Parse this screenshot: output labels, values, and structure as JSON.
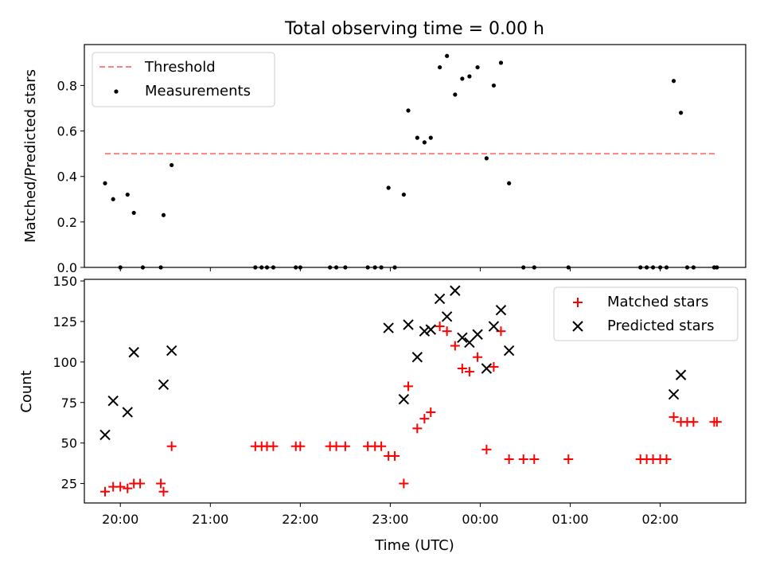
{
  "chart_data": [
    {
      "type": "scatter",
      "title": "Total observing time = 0.00 h",
      "xlabel": "",
      "ylabel": "Matched/Predicted stars",
      "ylim": [
        0,
        0.98
      ],
      "yticks": [
        "0.0",
        "0.2",
        "0.4",
        "0.6",
        "0.8"
      ],
      "ytick_values": [
        0,
        0.2,
        0.4,
        0.6,
        0.8
      ],
      "xlim": [
        19.6,
        26.95
      ],
      "legend_position": "top-left",
      "threshold": {
        "name": "Threshold",
        "value": 0.5,
        "x_start": 19.83,
        "x_end": 26.63,
        "color": "#ff8080"
      },
      "series": [
        {
          "name": "Measurements",
          "color": "#000000",
          "marker": "dot",
          "x": [
            19.83,
            19.92,
            20.0,
            20.08,
            20.15,
            20.25,
            20.45,
            20.48,
            20.57,
            21.5,
            21.57,
            21.63,
            21.7,
            21.95,
            22.0,
            22.33,
            22.4,
            22.5,
            22.75,
            22.83,
            22.9,
            22.98,
            23.05,
            23.15,
            23.2,
            23.3,
            23.38,
            23.45,
            23.55,
            23.63,
            23.72,
            23.8,
            23.88,
            23.97,
            24.07,
            24.15,
            24.23,
            24.32,
            24.48,
            24.6,
            24.98,
            25.78,
            25.85,
            25.92,
            26.0,
            26.07,
            26.15,
            26.23,
            26.3,
            26.37,
            26.6,
            26.63
          ],
          "y": [
            0.37,
            0.3,
            0.0,
            0.32,
            0.24,
            0.0,
            0.0,
            0.23,
            0.45,
            0.0,
            0.0,
            0.0,
            0.0,
            0.0,
            0.0,
            0.0,
            0.0,
            0.0,
            0.0,
            0.0,
            0.0,
            0.35,
            0.0,
            0.32,
            0.69,
            0.57,
            0.55,
            0.57,
            0.88,
            0.93,
            0.76,
            0.83,
            0.84,
            0.88,
            0.48,
            0.8,
            0.9,
            0.37,
            0.0,
            0.0,
            0.0,
            0.0,
            0.0,
            0.0,
            0.0,
            0.0,
            0.82,
            0.68,
            0.0,
            0.0,
            0.0,
            0.0
          ]
        }
      ]
    },
    {
      "type": "scatter",
      "title": "",
      "xlabel": "Time (UTC)",
      "ylabel": "Count",
      "ylim": [
        13,
        151
      ],
      "yticks": [
        "25",
        "50",
        "75",
        "100",
        "125",
        "150"
      ],
      "ytick_values": [
        25,
        50,
        75,
        100,
        125,
        150
      ],
      "xlim": [
        19.6,
        26.95
      ],
      "xticks": [
        "20:00",
        "21:00",
        "22:00",
        "23:00",
        "00:00",
        "01:00",
        "02:00"
      ],
      "xtick_values": [
        20,
        21,
        22,
        23,
        24,
        25,
        26
      ],
      "legend_position": "top-right",
      "series": [
        {
          "name": "Matched stars",
          "color": "#ff0000",
          "marker": "plus",
          "x": [
            19.83,
            19.92,
            20.0,
            20.08,
            20.15,
            20.22,
            20.45,
            20.48,
            20.57,
            21.5,
            21.57,
            21.63,
            21.7,
            21.95,
            22.0,
            22.33,
            22.4,
            22.5,
            22.75,
            22.83,
            22.9,
            22.98,
            23.05,
            23.15,
            23.2,
            23.3,
            23.38,
            23.45,
            23.55,
            23.63,
            23.72,
            23.8,
            23.88,
            23.97,
            24.07,
            24.15,
            24.23,
            24.32,
            24.48,
            24.6,
            24.98,
            25.78,
            25.85,
            25.92,
            26.0,
            26.07,
            26.15,
            26.23,
            26.3,
            26.37,
            26.6,
            26.63
          ],
          "y": [
            20,
            23,
            23,
            22,
            25,
            25,
            25,
            20,
            48,
            48,
            48,
            48,
            48,
            48,
            48,
            48,
            48,
            48,
            48,
            48,
            48,
            42,
            42,
            25,
            85,
            59,
            65,
            69,
            122,
            119,
            110,
            96,
            94,
            103,
            46,
            97,
            119,
            40,
            40,
            40,
            40,
            40,
            40,
            40,
            40,
            40,
            66,
            63,
            63,
            63,
            63,
            63
          ]
        },
        {
          "name": "Predicted stars",
          "color": "#000000",
          "marker": "x",
          "x": [
            19.83,
            19.92,
            20.08,
            20.15,
            20.48,
            20.57,
            22.98,
            23.15,
            23.2,
            23.3,
            23.38,
            23.45,
            23.55,
            23.63,
            23.72,
            23.8,
            23.88,
            23.97,
            24.07,
            24.15,
            24.23,
            24.32,
            26.15,
            26.23
          ],
          "y": [
            55,
            76,
            69,
            106,
            86,
            107,
            121,
            77,
            123,
            103,
            119,
            120,
            139,
            128,
            144,
            115,
            112,
            117,
            96,
            122,
            132,
            107,
            80,
            92
          ]
        }
      ]
    }
  ]
}
